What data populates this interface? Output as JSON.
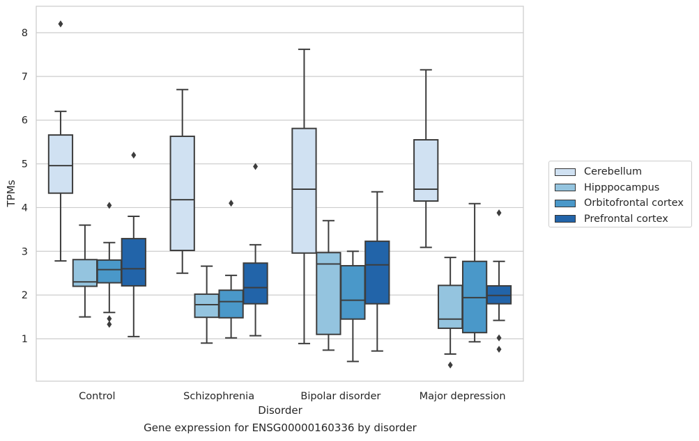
{
  "chart_data": {
    "type": "boxplot",
    "title": "Gene expression for ENSG00000160336 by disorder",
    "xlabel": "Disorder",
    "ylabel": "TPMs",
    "ylim": [
      0,
      8.6
    ],
    "yticks": [
      1,
      2,
      3,
      4,
      5,
      6,
      7,
      8
    ],
    "grid": "horizontal",
    "legend_position": "right",
    "categories": [
      "Control",
      "Schizophrenia",
      "Bipolar disorder",
      "Major depression"
    ],
    "series": [
      {
        "name": "Cerebellum",
        "color": "#d0e1f2",
        "boxes": [
          {
            "whislo": 2.78,
            "q1": 4.33,
            "med": 4.96,
            "q3": 5.66,
            "whishi": 6.2,
            "fliers": [
              8.2
            ]
          },
          {
            "whislo": 2.5,
            "q1": 3.02,
            "med": 4.18,
            "q3": 5.63,
            "whishi": 6.7,
            "fliers": []
          },
          {
            "whislo": 0.89,
            "q1": 2.96,
            "med": 4.42,
            "q3": 5.81,
            "whishi": 7.62,
            "fliers": []
          },
          {
            "whislo": 3.09,
            "q1": 4.15,
            "med": 4.42,
            "q3": 5.55,
            "whishi": 7.15,
            "fliers": []
          }
        ]
      },
      {
        "name": "Hipppocampus",
        "color": "#94c4df",
        "boxes": [
          {
            "whislo": 1.5,
            "q1": 2.2,
            "med": 2.3,
            "q3": 2.81,
            "whishi": 3.6,
            "fliers": []
          },
          {
            "whislo": 0.9,
            "q1": 1.49,
            "med": 1.78,
            "q3": 2.02,
            "whishi": 2.66,
            "fliers": []
          },
          {
            "whislo": 0.74,
            "q1": 1.1,
            "med": 2.71,
            "q3": 2.97,
            "whishi": 3.7,
            "fliers": []
          },
          {
            "whislo": 0.65,
            "q1": 1.24,
            "med": 1.45,
            "q3": 2.22,
            "whishi": 2.86,
            "fliers": [
              0.4
            ]
          }
        ]
      },
      {
        "name": "Orbitofrontal cortex",
        "color": "#4a98c9",
        "boxes": [
          {
            "whislo": 1.6,
            "q1": 2.28,
            "med": 2.58,
            "q3": 2.8,
            "whishi": 3.2,
            "fliers": [
              4.05,
              1.46,
              1.33
            ]
          },
          {
            "whislo": 1.02,
            "q1": 1.48,
            "med": 1.85,
            "q3": 2.11,
            "whishi": 2.45,
            "fliers": [
              4.1
            ]
          },
          {
            "whislo": 0.48,
            "q1": 1.45,
            "med": 1.88,
            "q3": 2.67,
            "whishi": 3.0,
            "fliers": []
          },
          {
            "whislo": 0.93,
            "q1": 1.14,
            "med": 1.94,
            "q3": 2.77,
            "whishi": 4.09,
            "fliers": []
          }
        ]
      },
      {
        "name": "Prefrontal cortex",
        "color": "#2264a9",
        "boxes": [
          {
            "whislo": 1.05,
            "q1": 2.21,
            "med": 2.6,
            "q3": 3.29,
            "whishi": 3.8,
            "fliers": [
              5.2
            ]
          },
          {
            "whislo": 1.07,
            "q1": 1.8,
            "med": 2.17,
            "q3": 2.73,
            "whishi": 3.15,
            "fliers": [
              4.94
            ]
          },
          {
            "whislo": 0.72,
            "q1": 1.8,
            "med": 2.69,
            "q3": 3.23,
            "whishi": 4.36,
            "fliers": []
          },
          {
            "whislo": 1.42,
            "q1": 1.8,
            "med": 1.99,
            "q3": 2.21,
            "whishi": 2.77,
            "fliers": [
              3.88,
              1.02,
              0.76
            ]
          }
        ]
      }
    ]
  }
}
